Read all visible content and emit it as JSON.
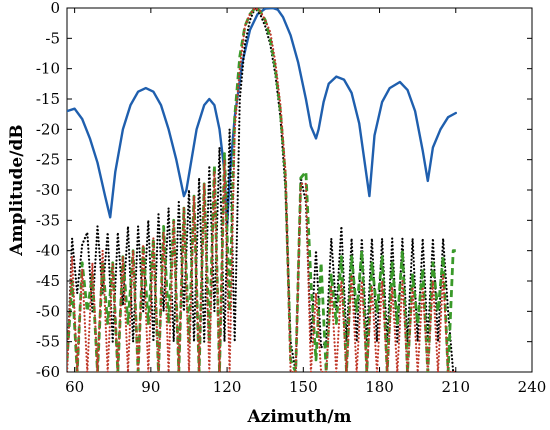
{
  "chart_data": {
    "type": "line",
    "title": "",
    "xlabel": "Azimuth/m",
    "ylabel": "Amplitude/dB",
    "xlim": [
      57,
      240
    ],
    "ylim": [
      -60,
      0
    ],
    "xticks": [
      60,
      90,
      120,
      150,
      180,
      210,
      240
    ],
    "yticks": [
      0,
      -5,
      -10,
      -15,
      -20,
      -25,
      -30,
      -35,
      -40,
      -45,
      -50,
      -55,
      -60
    ],
    "grid": false,
    "legend": "none",
    "series": [
      {
        "color": "#1f5fae",
        "style": "solid",
        "x": [
          57,
          60,
          63,
          66,
          69,
          72,
          74,
          76,
          79,
          82,
          85,
          88,
          91,
          94,
          97,
          100,
          103,
          104,
          106,
          108,
          111,
          113,
          115,
          117,
          119,
          120,
          121,
          123,
          126,
          129,
          132,
          135,
          138,
          140,
          142,
          145,
          148,
          151,
          153,
          155,
          156,
          158,
          160,
          163,
          166,
          169,
          172,
          174,
          176,
          178,
          181,
          184,
          188,
          191,
          194,
          197,
          199,
          201,
          204,
          207,
          210
        ],
        "y": [
          -17,
          -16.6,
          -18.3,
          -21.5,
          -25.5,
          -31,
          -34.5,
          -27,
          -20,
          -16,
          -13.8,
          -13.2,
          -13.8,
          -16,
          -20,
          -25,
          -31,
          -30,
          -25,
          -20,
          -16,
          -15,
          -16,
          -20,
          -27,
          -36,
          -28,
          -18,
          -9,
          -3.6,
          -1,
          -0.1,
          0,
          -0.3,
          -1.5,
          -4.5,
          -9,
          -15,
          -19.5,
          -21.5,
          -20,
          -15.5,
          -12.5,
          -11.3,
          -11.8,
          -14,
          -19,
          -25,
          -31,
          -21,
          -15.5,
          -13.2,
          -12.2,
          -13.5,
          -17,
          -23.5,
          -28.5,
          -23,
          -20,
          -18,
          -17.3
        ]
      },
      {
        "color": "#000000",
        "style": "dotted",
        "x": [
          57,
          59,
          61,
          63,
          65,
          67,
          69,
          71,
          73,
          75,
          77,
          79,
          81,
          83,
          85,
          87,
          89,
          91,
          93,
          95,
          97,
          99,
          101,
          103,
          105,
          107,
          109,
          111,
          113,
          115,
          117,
          119,
          121,
          123,
          125,
          127,
          129,
          131,
          133,
          135,
          137,
          139,
          141,
          143,
          145,
          147,
          149,
          151,
          153,
          155,
          157,
          159,
          161,
          163,
          165,
          167,
          169,
          171,
          173,
          175,
          177,
          179,
          181,
          183,
          185,
          187,
          189,
          191,
          193,
          195,
          197,
          199,
          201,
          203,
          205,
          207,
          209,
          210
        ],
        "y": [
          -60,
          -38,
          -47,
          -39,
          -37,
          -50,
          -36,
          -47,
          -37,
          -55,
          -37,
          -49,
          -36,
          -55,
          -36,
          -50,
          -35,
          -55,
          -34,
          -50,
          -33,
          -55,
          -32,
          -50,
          -30,
          -55,
          -28,
          -55,
          -26,
          -50,
          -23,
          -55,
          -20,
          -55,
          -15,
          -6,
          -2,
          0,
          -1,
          -3,
          -6,
          -11,
          -18,
          -30,
          -55,
          -60,
          -28,
          -32,
          -55,
          -40,
          -56,
          -55,
          -38,
          -50,
          -36,
          -55,
          -38,
          -55,
          -38,
          -55,
          -38,
          -55,
          -38,
          -55,
          -38,
          -55,
          -38,
          -55,
          -38,
          -55,
          -38,
          -55,
          -38,
          -55,
          -38,
          -50,
          -60,
          -60
        ]
      },
      {
        "color": "#3a9a2a",
        "style": "dashed",
        "x": [
          57,
          59,
          61,
          63,
          65,
          67,
          69,
          71,
          73,
          75,
          77,
          79,
          81,
          83,
          85,
          87,
          89,
          91,
          93,
          95,
          97,
          99,
          101,
          103,
          105,
          107,
          109,
          111,
          113,
          115,
          117,
          119,
          121,
          123,
          125,
          127,
          129,
          131,
          133,
          135,
          137,
          139,
          141,
          143,
          145,
          147,
          149,
          151,
          153,
          155,
          157,
          159,
          161,
          163,
          165,
          167,
          169,
          171,
          173,
          175,
          177,
          179,
          181,
          183,
          185,
          187,
          189,
          191,
          193,
          195,
          197,
          199,
          201,
          203,
          205,
          207,
          209,
          210
        ],
        "y": [
          -58,
          -45,
          -60,
          -42,
          -50,
          -44,
          -60,
          -42,
          -52,
          -42,
          -60,
          -41,
          -52,
          -40,
          -60,
          -39,
          -52,
          -38,
          -60,
          -36,
          -52,
          -35,
          -60,
          -33,
          -55,
          -31,
          -60,
          -29,
          -55,
          -26,
          -60,
          -24,
          -50,
          -18,
          -8,
          -3,
          -1,
          0,
          -0.5,
          -2,
          -5,
          -10,
          -17,
          -28,
          -58,
          -60,
          -28,
          -27,
          -45,
          -58,
          -42,
          -60,
          -44,
          -52,
          -41,
          -60,
          -41,
          -50,
          -40,
          -60,
          -42,
          -50,
          -41,
          -60,
          -42,
          -52,
          -40,
          -60,
          -44,
          -52,
          -43,
          -60,
          -42,
          -50,
          -41,
          -60,
          -40,
          -40
        ]
      },
      {
        "color": "#c0392b",
        "style": "dotted",
        "x": [
          57,
          59,
          61,
          63,
          65,
          67,
          69,
          71,
          73,
          75,
          77,
          79,
          81,
          83,
          85,
          87,
          89,
          91,
          93,
          95,
          97,
          99,
          101,
          103,
          105,
          107,
          109,
          111,
          113,
          115,
          117,
          119,
          121,
          123,
          125,
          127,
          129,
          131,
          133,
          135,
          137,
          139,
          141,
          143,
          145,
          147,
          149,
          151,
          153,
          155,
          157,
          159,
          161,
          163,
          165,
          167,
          169,
          171,
          173,
          175,
          177,
          179,
          181,
          183,
          185,
          187,
          189,
          191,
          193,
          195,
          197,
          199,
          201,
          203,
          205,
          207,
          209,
          210
        ],
        "y": [
          -60,
          -41,
          -60,
          -43,
          -60,
          -42,
          -60,
          -40,
          -60,
          -42,
          -60,
          -41,
          -60,
          -40,
          -60,
          -39,
          -60,
          -38,
          -60,
          -37,
          -60,
          -35,
          -60,
          -33,
          -60,
          -31,
          -60,
          -29,
          -60,
          -27,
          -60,
          -25,
          -60,
          -20,
          -10,
          -3,
          -1,
          0,
          -0.5,
          -2,
          -4,
          -9,
          -16,
          -27,
          -60,
          -60,
          -29,
          -29,
          -60,
          -47,
          -60,
          -60,
          -46,
          -60,
          -45,
          -60,
          -44,
          -60,
          -45,
          -60,
          -46,
          -60,
          -45,
          -60,
          -46,
          -60,
          -45,
          -60,
          -46,
          -60,
          -46,
          -60,
          -45,
          -60,
          -44,
          -60,
          -60,
          -60
        ]
      }
    ]
  }
}
